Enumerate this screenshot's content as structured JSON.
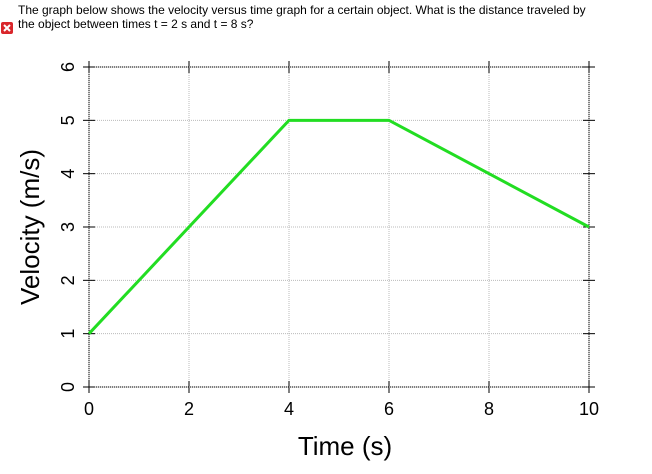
{
  "question": [
    "The graph below shows the velocity versus time graph for a certain object. What is the distance traveled by",
    "the object between times t = 2 s and  t = 8 s?"
  ],
  "chart_data": {
    "type": "line",
    "x": [
      0,
      4,
      6,
      10
    ],
    "values": [
      1,
      5,
      5,
      3
    ],
    "color": "#22dd22",
    "xlabel": "Time (s)",
    "ylabel": "Velocity (m/s)",
    "xlim": [
      0,
      10
    ],
    "xticks": [
      0,
      2,
      4,
      6,
      8,
      10
    ],
    "ylim": [
      0,
      6
    ],
    "yticks": [
      0,
      1,
      2,
      3,
      4,
      5,
      6
    ],
    "grid": true
  }
}
